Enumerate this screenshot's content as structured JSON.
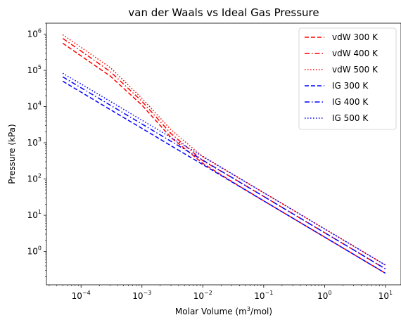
{
  "chart_data": {
    "type": "line",
    "title": "van der Waals vs Ideal Gas Pressure",
    "xlabel_base": "Molar Volume (m",
    "xlabel_sup": "3",
    "xlabel_tail": "/mol)",
    "ylabel": "Pressure (kPa)",
    "xscale": "log",
    "yscale": "log",
    "xlim": [
      2.7e-05,
      18
    ],
    "ylim": [
      0.12,
      2000000.0
    ],
    "xticks": [
      {
        "value": 0.0001,
        "base": "10",
        "exp": "−4"
      },
      {
        "value": 0.001,
        "base": "10",
        "exp": "−3"
      },
      {
        "value": 0.01,
        "base": "10",
        "exp": "−2"
      },
      {
        "value": 0.1,
        "base": "10",
        "exp": "−1"
      },
      {
        "value": 1.0,
        "base": "10",
        "exp": "0"
      },
      {
        "value": 10.0,
        "base": "10",
        "exp": "1"
      }
    ],
    "yticks": [
      {
        "value": 1.0,
        "base": "10",
        "exp": "0"
      },
      {
        "value": 10.0,
        "base": "10",
        "exp": "1"
      },
      {
        "value": 100.0,
        "base": "10",
        "exp": "2"
      },
      {
        "value": 1000.0,
        "base": "10",
        "exp": "3"
      },
      {
        "value": 10000.0,
        "base": "10",
        "exp": "4"
      },
      {
        "value": 100000.0,
        "base": "10",
        "exp": "5"
      },
      {
        "value": 1000000.0,
        "base": "10",
        "exp": "6"
      }
    ],
    "grid": false,
    "legend_position": "top-right",
    "series": [
      {
        "name": "vdW 300 K",
        "color": "#ff0000",
        "style": "dashed",
        "x": [
          5e-05,
          0.0001,
          0.0003,
          0.001,
          0.003,
          0.01,
          0.03,
          0.1,
          0.3,
          1,
          3,
          10
        ],
        "y": [
          560000,
          250000,
          70000,
          11000,
          1400,
          270,
          85,
          25,
          8.3,
          2.5,
          0.83,
          0.25
        ]
      },
      {
        "name": "vdW 400 K",
        "color": "#ff0000",
        "style": "dashdot",
        "x": [
          5e-05,
          0.0001,
          0.0003,
          0.001,
          0.003,
          0.01,
          0.03,
          0.1,
          0.3,
          1,
          3,
          10
        ],
        "y": [
          760000,
          340000,
          93000,
          14000,
          1800,
          320,
          110,
          33,
          11,
          3.3,
          1.1,
          0.33
        ]
      },
      {
        "name": "vdW 500 K",
        "color": "#ff0000",
        "style": "dotted",
        "x": [
          5e-05,
          0.0001,
          0.0003,
          0.001,
          0.003,
          0.01,
          0.03,
          0.1,
          0.3,
          1,
          3,
          10
        ],
        "y": [
          960000,
          430000,
          120000,
          17000,
          2300,
          410,
          138,
          42,
          14,
          4.2,
          1.4,
          0.42
        ]
      },
      {
        "name": "IG 300 K",
        "color": "#0000ff",
        "style": "dashed",
        "x": [
          5e-05,
          0.0001,
          0.0003,
          0.001,
          0.003,
          0.01,
          0.03,
          0.1,
          0.3,
          1,
          3,
          10
        ],
        "y": [
          50000,
          25000,
          8300,
          2500,
          830,
          250,
          83,
          25,
          8.3,
          2.5,
          0.83,
          0.25
        ]
      },
      {
        "name": "IG 400 K",
        "color": "#0000ff",
        "style": "dashdot",
        "x": [
          5e-05,
          0.0001,
          0.0003,
          0.001,
          0.003,
          0.01,
          0.03,
          0.1,
          0.3,
          1,
          3,
          10
        ],
        "y": [
          66000,
          33000,
          11000,
          3300,
          1100,
          330,
          110,
          33,
          11,
          3.3,
          1.1,
          0.33
        ]
      },
      {
        "name": "IG 500 K",
        "color": "#0000ff",
        "style": "dotted",
        "x": [
          5e-05,
          0.0001,
          0.0003,
          0.001,
          0.003,
          0.01,
          0.03,
          0.1,
          0.3,
          1,
          3,
          10
        ],
        "y": [
          83000,
          42000,
          14000,
          4200,
          1400,
          420,
          140,
          42,
          14,
          4.2,
          1.4,
          0.42
        ]
      }
    ]
  }
}
